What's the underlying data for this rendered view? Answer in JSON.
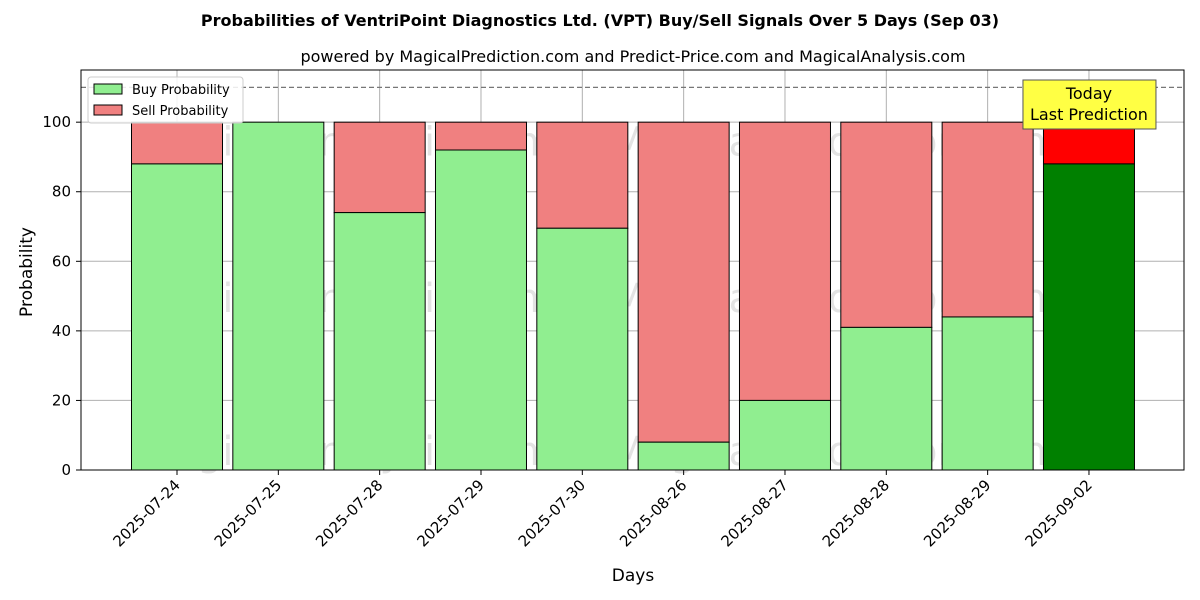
{
  "chart_data": {
    "type": "bar",
    "stacked": true,
    "title": "Probabilities of VentriPoint Diagnostics Ltd. (VPT) Buy/Sell Signals Over 5 Days (Sep 03)",
    "subtitle": "powered by MagicalPrediction.com and Predict-Price.com and MagicalAnalysis.com",
    "xlabel": "Days",
    "ylabel": "Probability",
    "ylim": [
      0,
      115
    ],
    "yticks": [
      0,
      20,
      40,
      60,
      80,
      100
    ],
    "grid": true,
    "legend_position": "top-left",
    "reference_line": 110,
    "categories": [
      "2025-07-24",
      "2025-07-25",
      "2025-07-28",
      "2025-07-29",
      "2025-07-30",
      "2025-08-26",
      "2025-08-27",
      "2025-08-28",
      "2025-08-29",
      "2025-09-02"
    ],
    "series": [
      {
        "name": "Buy Probability",
        "color": "#90ee90",
        "values": [
          88,
          100,
          74,
          92,
          69.5,
          8,
          20,
          41,
          44,
          88
        ]
      },
      {
        "name": "Sell Probability",
        "color": "#f08080",
        "values": [
          12,
          0,
          26,
          8,
          30.5,
          92,
          80,
          59,
          56,
          12
        ]
      }
    ],
    "highlight": {
      "index": 9,
      "buy_color": "#008000",
      "sell_color": "#ff0000"
    },
    "annotation": {
      "line1": "Today",
      "line2": "Last Prediction",
      "background": "#ffff44"
    },
    "watermarks": [
      "MagicalAnalysis.com",
      "MagicalPrediction.com"
    ]
  }
}
